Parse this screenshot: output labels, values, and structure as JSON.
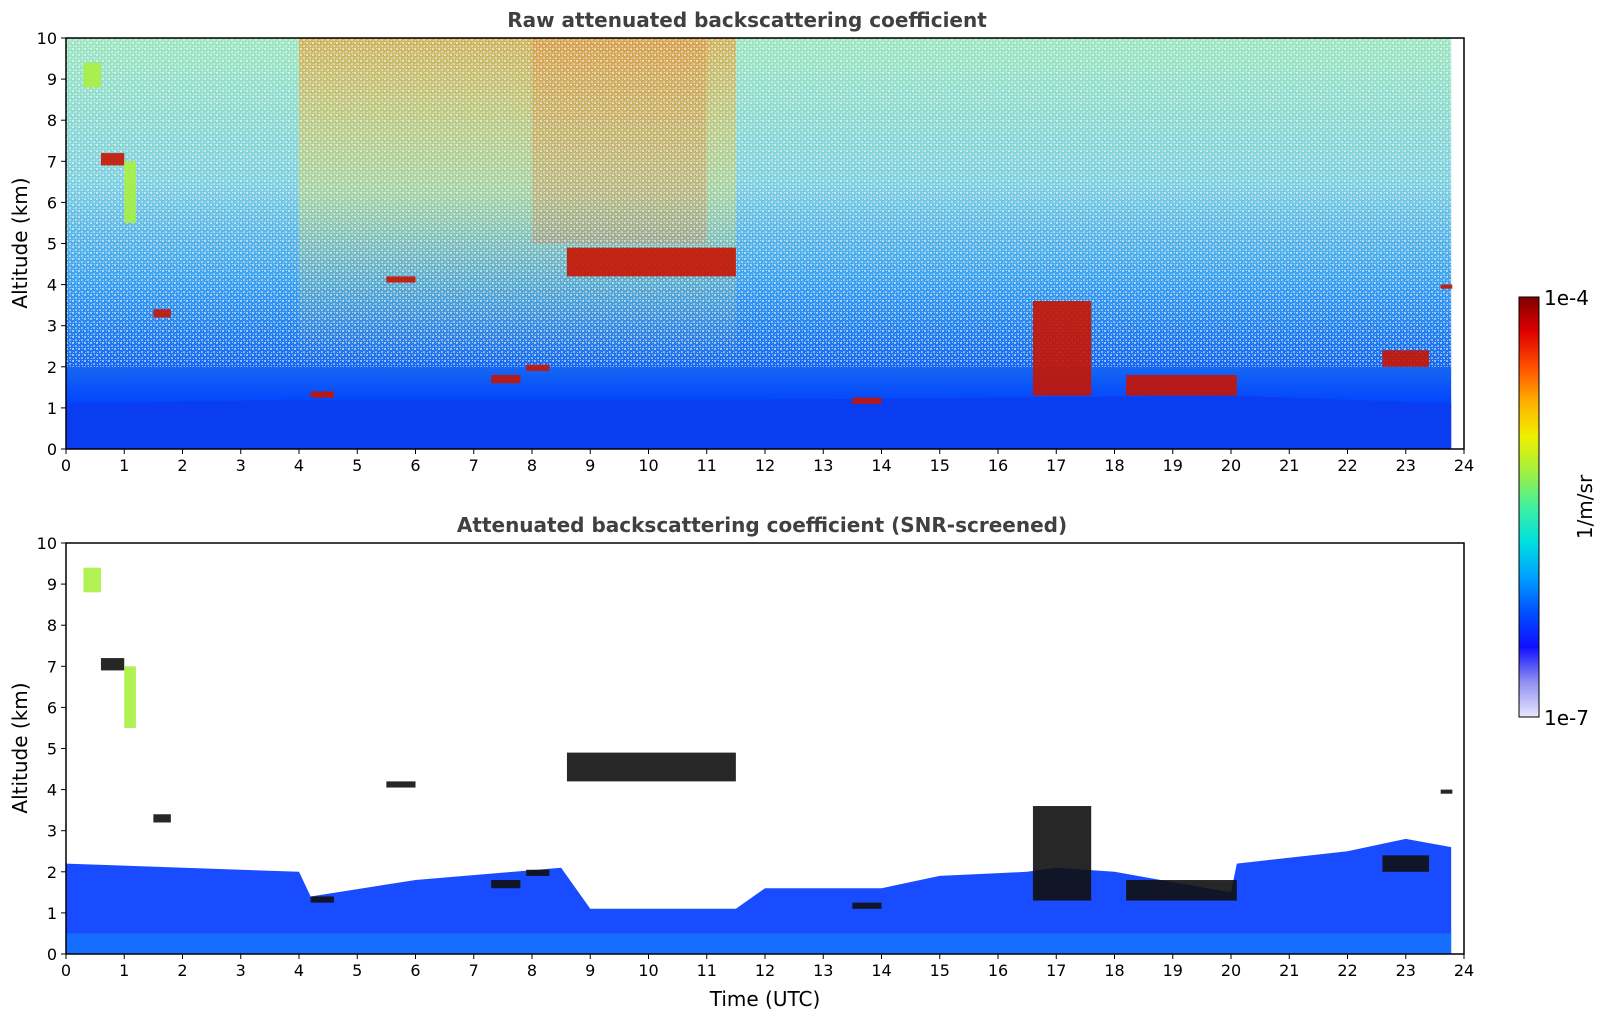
{
  "chart_data": [
    {
      "type": "heatmap",
      "title": "Raw attenuated backscattering coefficient",
      "xlabel": "",
      "ylabel": "Altitude (km)",
      "xlim": [
        0,
        24
      ],
      "ylim": [
        0,
        10
      ],
      "xticks": [
        "0",
        "1",
        "2",
        "3",
        "4",
        "5",
        "6",
        "7",
        "8",
        "9",
        "10",
        "11",
        "12",
        "13",
        "14",
        "15",
        "16",
        "17",
        "18",
        "19",
        "20",
        "21",
        "22",
        "23",
        "24"
      ],
      "yticks": [
        "0",
        "1",
        "2",
        "3",
        "4",
        "5",
        "6",
        "7",
        "8",
        "9",
        "10"
      ],
      "data_end_time": 23.78,
      "boundary_layer_top_km": [
        [
          0,
          1.1
        ],
        [
          4,
          1.2
        ],
        [
          12,
          1.2
        ],
        [
          20,
          1.3
        ],
        [
          23.78,
          1.1
        ]
      ],
      "cloud_layers": [
        {
          "t": [
            0.3,
            0.6
          ],
          "alt": [
            8.8,
            9.4
          ],
          "level": "mid"
        },
        {
          "t": [
            0.6,
            1.0
          ],
          "alt": [
            6.9,
            7.2
          ],
          "level": "high"
        },
        {
          "t": [
            1.0,
            1.2
          ],
          "alt": [
            5.5,
            7.0
          ],
          "level": "mid"
        },
        {
          "t": [
            1.5,
            1.8
          ],
          "alt": [
            3.2,
            3.4
          ],
          "level": "high"
        },
        {
          "t": [
            4.2,
            4.6
          ],
          "alt": [
            1.25,
            1.4
          ],
          "level": "high"
        },
        {
          "t": [
            5.5,
            6.0
          ],
          "alt": [
            4.05,
            4.2
          ],
          "level": "high"
        },
        {
          "t": [
            7.3,
            7.8
          ],
          "alt": [
            1.6,
            1.8
          ],
          "level": "high"
        },
        {
          "t": [
            7.9,
            8.3
          ],
          "alt": [
            1.9,
            2.05
          ],
          "level": "high"
        },
        {
          "t": [
            8.6,
            11.5
          ],
          "alt": [
            4.2,
            4.9
          ],
          "level": "high"
        },
        {
          "t": [
            13.5,
            14.0
          ],
          "alt": [
            1.1,
            1.25
          ],
          "level": "high"
        },
        {
          "t": [
            16.6,
            17.6
          ],
          "alt": [
            1.3,
            3.6
          ],
          "level": "high"
        },
        {
          "t": [
            18.2,
            20.1
          ],
          "alt": [
            1.3,
            1.8
          ],
          "level": "high"
        },
        {
          "t": [
            22.6,
            23.4
          ],
          "alt": [
            2.0,
            2.4
          ],
          "level": "high"
        },
        {
          "t": [
            23.6,
            23.8
          ],
          "alt": [
            3.9,
            4.0
          ],
          "level": "high"
        }
      ]
    },
    {
      "type": "heatmap",
      "title": "Attenuated backscattering coefficient (SNR-screened)",
      "xlabel": "Time (UTC)",
      "ylabel": "Altitude (km)",
      "xlim": [
        0,
        24
      ],
      "ylim": [
        0,
        10
      ],
      "xticks": [
        "0",
        "1",
        "2",
        "3",
        "4",
        "5",
        "6",
        "7",
        "8",
        "9",
        "10",
        "11",
        "12",
        "13",
        "14",
        "15",
        "16",
        "17",
        "18",
        "19",
        "20",
        "21",
        "22",
        "23",
        "24"
      ],
      "yticks": [
        "0",
        "1",
        "2",
        "3",
        "4",
        "5",
        "6",
        "7",
        "8",
        "9",
        "10"
      ],
      "data_end_time": 23.78,
      "screened_top_km": [
        [
          0,
          2.2
        ],
        [
          4,
          2.0
        ],
        [
          4.2,
          1.4
        ],
        [
          6,
          1.8
        ],
        [
          8.5,
          2.1
        ],
        [
          9,
          1.1
        ],
        [
          11.5,
          1.1
        ],
        [
          12,
          1.6
        ],
        [
          14,
          1.6
        ],
        [
          15,
          1.9
        ],
        [
          16.5,
          2.0
        ],
        [
          17,
          2.1
        ],
        [
          18,
          2.0
        ],
        [
          20,
          1.5
        ],
        [
          20.1,
          2.2
        ],
        [
          22,
          2.5
        ],
        [
          23,
          2.8
        ],
        [
          23.78,
          2.6
        ]
      ]
    }
  ],
  "colorbar": {
    "label": "1/m/sr",
    "max_label": "1e-4",
    "min_label": "1e-7",
    "scale": "log",
    "colormap": [
      "#e8e8ff",
      "#9090f0",
      "#1010ff",
      "#0050ff",
      "#00a0ff",
      "#00e0e0",
      "#40f0a0",
      "#a0f040",
      "#f0f000",
      "#ffb000",
      "#ff5000",
      "#e00000",
      "#800000"
    ]
  }
}
